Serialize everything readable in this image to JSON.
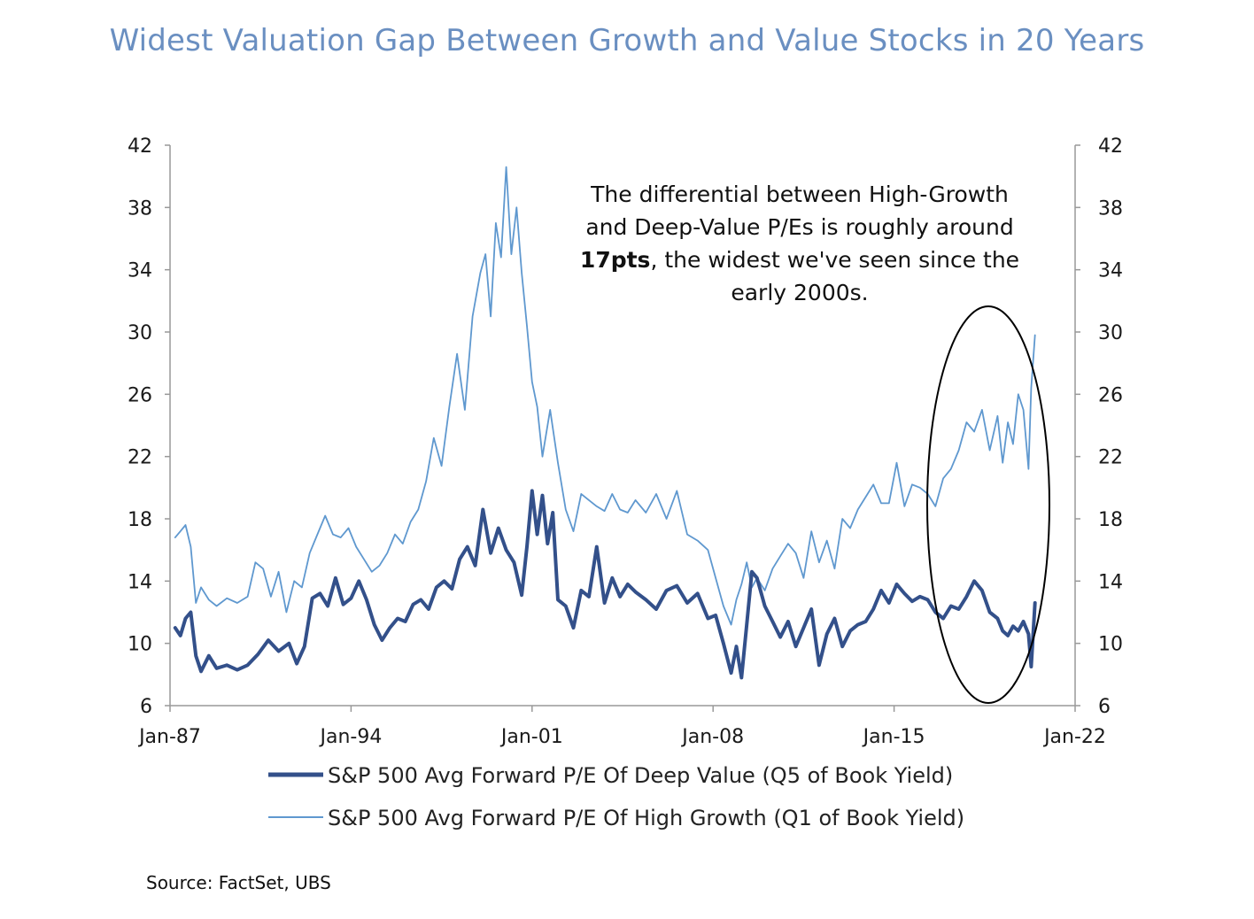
{
  "title": "Widest Valuation Gap Between Growth and Value Stocks in 20 Years",
  "source": "Source: FactSet, UBS",
  "annotation": {
    "line1": "The differential between High-Growth",
    "line2": "and Deep-Value P/Es is roughly around",
    "line3_bold": "17pts",
    "line3_rest": ", the widest we've seen since the",
    "line4": "early 2000s."
  },
  "chart_data": {
    "type": "line",
    "title": "Widest Valuation Gap Between Growth and Value Stocks in 20 Years",
    "xlabel": "",
    "ylabel": "",
    "xlim": [
      1987.0,
      2022.0
    ],
    "ylim": [
      6,
      42
    ],
    "x_ticks": [
      {
        "value": 1987.0,
        "label": "Jan-87"
      },
      {
        "value": 1994.0,
        "label": "Jan-94"
      },
      {
        "value": 2001.0,
        "label": "Jan-01"
      },
      {
        "value": 2008.0,
        "label": "Jan-08"
      },
      {
        "value": 2015.0,
        "label": "Jan-15"
      },
      {
        "value": 2022.0,
        "label": "Jan-22"
      }
    ],
    "y_ticks": [
      6,
      10,
      14,
      18,
      22,
      26,
      30,
      34,
      38,
      42
    ],
    "secondary_y_ticks": [
      6,
      10,
      14,
      18,
      22,
      26,
      30,
      34,
      38,
      42
    ],
    "grid": false,
    "legend_position": "bottom",
    "series": [
      {
        "name": "S&P 500 Avg Forward P/E Of Deep Value (Q5 of Book Yield)",
        "color": "#33508a",
        "x": [
          1987.2,
          1987.4,
          1987.6,
          1987.8,
          1988.0,
          1988.2,
          1988.5,
          1988.8,
          1989.2,
          1989.6,
          1990.0,
          1990.4,
          1990.8,
          1991.2,
          1991.6,
          1991.9,
          1992.2,
          1992.5,
          1992.8,
          1993.1,
          1993.4,
          1993.7,
          1994.0,
          1994.3,
          1994.6,
          1994.9,
          1995.2,
          1995.5,
          1995.8,
          1996.1,
          1996.4,
          1996.7,
          1997.0,
          1997.3,
          1997.6,
          1997.9,
          1998.2,
          1998.5,
          1998.8,
          1999.1,
          1999.4,
          1999.7,
          2000.0,
          2000.3,
          2000.6,
          2000.8,
          2001.0,
          2001.2,
          2001.4,
          2001.6,
          2001.8,
          2002.0,
          2002.3,
          2002.6,
          2002.9,
          2003.2,
          2003.5,
          2003.8,
          2004.1,
          2004.4,
          2004.7,
          2005.0,
          2005.4,
          2005.8,
          2006.2,
          2006.6,
          2007.0,
          2007.4,
          2007.8,
          2008.1,
          2008.4,
          2008.7,
          2008.9,
          2009.1,
          2009.3,
          2009.5,
          2009.7,
          2010.0,
          2010.3,
          2010.6,
          2010.9,
          2011.2,
          2011.5,
          2011.8,
          2012.1,
          2012.4,
          2012.7,
          2013.0,
          2013.3,
          2013.6,
          2013.9,
          2014.2,
          2014.5,
          2014.8,
          2015.1,
          2015.4,
          2015.7,
          2016.0,
          2016.3,
          2016.6,
          2016.9,
          2017.2,
          2017.5,
          2017.8,
          2018.1,
          2018.4,
          2018.7,
          2019.0,
          2019.2,
          2019.4,
          2019.6,
          2019.8,
          2020.0,
          2020.2,
          2020.3,
          2020.45
        ],
        "values": [
          11.0,
          10.5,
          11.6,
          12.0,
          9.2,
          8.2,
          9.2,
          8.4,
          8.6,
          8.3,
          8.6,
          9.3,
          10.2,
          9.5,
          10.0,
          8.7,
          9.8,
          12.9,
          13.2,
          12.4,
          14.2,
          12.5,
          12.9,
          14.0,
          12.8,
          11.2,
          10.2,
          11.0,
          11.6,
          11.4,
          12.5,
          12.8,
          12.2,
          13.6,
          14.0,
          13.5,
          15.4,
          16.2,
          15.0,
          18.6,
          15.8,
          17.4,
          16.0,
          15.2,
          13.1,
          16.2,
          19.8,
          17.0,
          19.5,
          16.4,
          18.4,
          12.8,
          12.4,
          11.0,
          13.4,
          13.0,
          16.2,
          12.6,
          14.2,
          13.0,
          13.8,
          13.3,
          12.8,
          12.2,
          13.4,
          13.7,
          12.6,
          13.2,
          11.6,
          11.8,
          10.0,
          8.1,
          9.8,
          7.8,
          11.2,
          14.6,
          14.2,
          12.4,
          11.4,
          10.4,
          11.4,
          9.8,
          11.0,
          12.2,
          8.6,
          10.6,
          11.6,
          9.8,
          10.8,
          11.2,
          11.4,
          12.2,
          13.4,
          12.6,
          13.8,
          13.2,
          12.7,
          13.0,
          12.8,
          12.0,
          11.6,
          12.4,
          12.2,
          13.0,
          14.0,
          13.4,
          12.0,
          11.6,
          10.8,
          10.5,
          11.1,
          10.8,
          11.4,
          10.6,
          8.5,
          12.6
        ]
      },
      {
        "name": "S&P 500 Avg Forward P/E Of High Growth (Q1 of Book Yield)",
        "color": "#5f98cf",
        "x": [
          1987.2,
          1987.4,
          1987.6,
          1987.8,
          1988.0,
          1988.2,
          1988.5,
          1988.8,
          1989.2,
          1989.6,
          1990.0,
          1990.3,
          1990.6,
          1990.9,
          1991.2,
          1991.5,
          1991.8,
          1992.1,
          1992.4,
          1992.7,
          1993.0,
          1993.3,
          1993.6,
          1993.9,
          1994.2,
          1994.5,
          1994.8,
          1995.1,
          1995.4,
          1995.7,
          1996.0,
          1996.3,
          1996.6,
          1996.9,
          1997.2,
          1997.5,
          1997.8,
          1998.1,
          1998.4,
          1998.7,
          1999.0,
          1999.2,
          1999.4,
          1999.6,
          1999.8,
          2000.0,
          2000.2,
          2000.4,
          2000.6,
          2000.8,
          2001.0,
          2001.2,
          2001.4,
          2001.7,
          2002.0,
          2002.3,
          2002.6,
          2002.9,
          2003.2,
          2003.5,
          2003.8,
          2004.1,
          2004.4,
          2004.7,
          2005.0,
          2005.4,
          2005.8,
          2006.2,
          2006.6,
          2007.0,
          2007.4,
          2007.8,
          2008.1,
          2008.4,
          2008.7,
          2008.9,
          2009.1,
          2009.3,
          2009.5,
          2009.7,
          2010.0,
          2010.3,
          2010.6,
          2010.9,
          2011.2,
          2011.5,
          2011.8,
          2012.1,
          2012.4,
          2012.7,
          2013.0,
          2013.3,
          2013.6,
          2013.9,
          2014.2,
          2014.5,
          2014.8,
          2015.1,
          2015.4,
          2015.7,
          2016.0,
          2016.3,
          2016.6,
          2016.9,
          2017.2,
          2017.5,
          2017.8,
          2018.1,
          2018.4,
          2018.7,
          2019.0,
          2019.2,
          2019.4,
          2019.6,
          2019.8,
          2020.0,
          2020.2,
          2020.3,
          2020.45
        ],
        "values": [
          16.8,
          17.2,
          17.6,
          16.2,
          12.6,
          13.6,
          12.8,
          12.4,
          12.9,
          12.6,
          13.0,
          15.2,
          14.8,
          13.0,
          14.6,
          12.0,
          14.0,
          13.6,
          15.8,
          17.0,
          18.2,
          17.0,
          16.8,
          17.4,
          16.2,
          15.4,
          14.6,
          15.0,
          15.8,
          17.0,
          16.4,
          17.8,
          18.6,
          20.4,
          23.2,
          21.4,
          25.2,
          28.6,
          25.0,
          31.0,
          33.8,
          35.0,
          31.0,
          37.0,
          34.8,
          40.6,
          35.0,
          38.0,
          33.8,
          30.4,
          26.8,
          25.2,
          22.0,
          25.0,
          21.6,
          18.6,
          17.2,
          19.6,
          19.2,
          18.8,
          18.5,
          19.6,
          18.6,
          18.4,
          19.2,
          18.4,
          19.6,
          18.0,
          19.8,
          17.0,
          16.6,
          16.0,
          14.2,
          12.4,
          11.2,
          12.8,
          13.8,
          15.2,
          13.6,
          14.2,
          13.4,
          14.8,
          15.6,
          16.4,
          15.8,
          14.2,
          17.2,
          15.2,
          16.6,
          14.8,
          18.0,
          17.4,
          18.6,
          19.4,
          20.2,
          19.0,
          19.0,
          21.6,
          18.8,
          20.2,
          20.0,
          19.6,
          18.8,
          20.6,
          21.2,
          22.4,
          24.2,
          23.6,
          25.0,
          22.4,
          24.6,
          21.6,
          24.2,
          22.8,
          26.0,
          25.0,
          21.2,
          26.4,
          29.8
        ]
      }
    ]
  },
  "highlight": {
    "shape": "ellipse",
    "color": "#000000"
  }
}
